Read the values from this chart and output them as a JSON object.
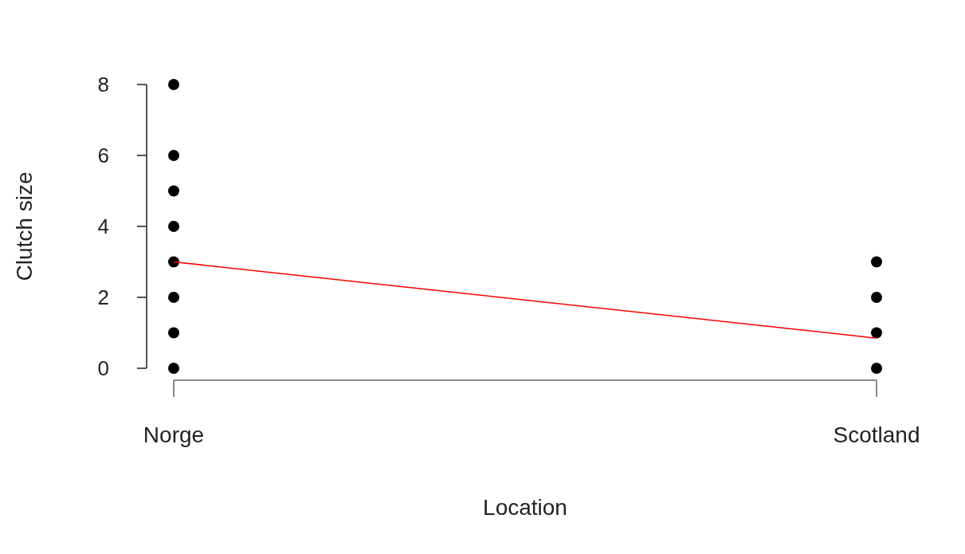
{
  "chart_data": {
    "type": "scatter",
    "xlabel": "Location",
    "ylabel": "Clutch size",
    "categories": [
      "Norge",
      "Scotland"
    ],
    "ylim": [
      0,
      8
    ],
    "yticks": [
      0,
      2,
      4,
      6,
      8
    ],
    "grid": false,
    "series": [
      {
        "type": "scatter",
        "marker": "circle",
        "color": "#000000",
        "x": [
          "Norge",
          "Norge",
          "Norge",
          "Norge",
          "Norge",
          "Norge",
          "Norge",
          "Norge",
          "Scotland",
          "Scotland",
          "Scotland",
          "Scotland"
        ],
        "values": [
          0,
          1,
          2,
          3,
          4,
          5,
          6,
          8,
          0,
          1,
          2,
          3
        ]
      },
      {
        "type": "line",
        "marker": "none",
        "color": "#ff0000",
        "x": [
          "Norge",
          "Scotland"
        ],
        "values": [
          3,
          0.85
        ]
      }
    ]
  }
}
